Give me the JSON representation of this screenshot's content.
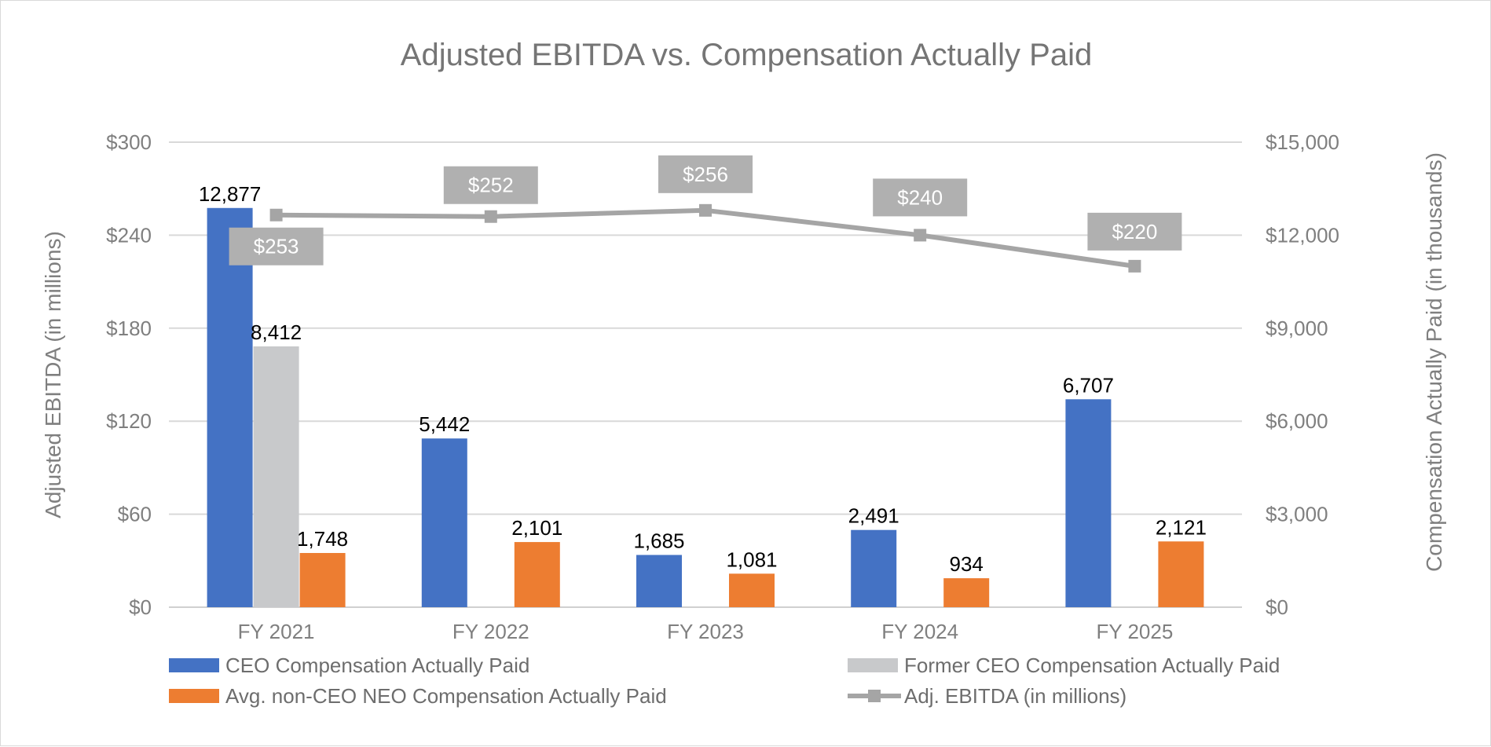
{
  "chart_data": {
    "type": "bar",
    "title": "Adjusted EBITDA vs. Compensation Actually Paid",
    "categories": [
      "FY 2021",
      "FY 2022",
      "FY 2023",
      "FY 2024",
      "FY 2025"
    ],
    "y_left": {
      "label": "Adjusted EBITDA (in millions)",
      "ylim": [
        0,
        300
      ],
      "ticks": [
        0,
        60,
        120,
        180,
        240,
        300
      ],
      "tick_labels": [
        "$0",
        "$60",
        "$120",
        "$180",
        "$240",
        "$300"
      ]
    },
    "y_right": {
      "label": "Compensation Actually Paid (in thousands)",
      "ylim": [
        0,
        15000
      ],
      "ticks": [
        0,
        3000,
        6000,
        9000,
        12000,
        15000
      ],
      "tick_labels": [
        "$0",
        "$3,000",
        "$6,000",
        "$9,000",
        "$12,000",
        "$15,000"
      ]
    },
    "series": [
      {
        "name": "CEO Compensation Actually Paid",
        "type": "bar",
        "axis": "right",
        "color": "#4472c4",
        "values": [
          12877,
          5442,
          1685,
          2491,
          6707
        ],
        "labels": [
          "12,877",
          "5,442",
          "1,685",
          "2,491",
          "6,707"
        ]
      },
      {
        "name": "Former CEO Compensation Actually Paid",
        "type": "bar",
        "axis": "right",
        "color": "#c8c9cb",
        "values": [
          8412,
          null,
          null,
          null,
          null
        ],
        "labels": [
          "8,412",
          null,
          null,
          null,
          null
        ]
      },
      {
        "name": "Avg. non-CEO NEO Compensation Actually Paid",
        "type": "bar",
        "axis": "right",
        "color": "#ed7d31",
        "values": [
          1748,
          2101,
          1081,
          934,
          2121
        ],
        "labels": [
          "1,748",
          "2,101",
          "1,081",
          "934",
          "2,121"
        ]
      },
      {
        "name": "Adj. EBITDA (in millions)",
        "type": "line",
        "axis": "left",
        "color": "#a5a5a5",
        "values": [
          253,
          252,
          256,
          240,
          220
        ],
        "labels": [
          "$253",
          "$252",
          "$256",
          "$240",
          "$220"
        ]
      }
    ],
    "legend": {
      "position": "bottom",
      "items": [
        "CEO Compensation Actually Paid",
        "Former CEO Compensation Actually Paid",
        "Avg. non-CEO NEO Compensation Actually Paid",
        "Adj. EBITDA (in millions)"
      ]
    },
    "grid": true
  }
}
